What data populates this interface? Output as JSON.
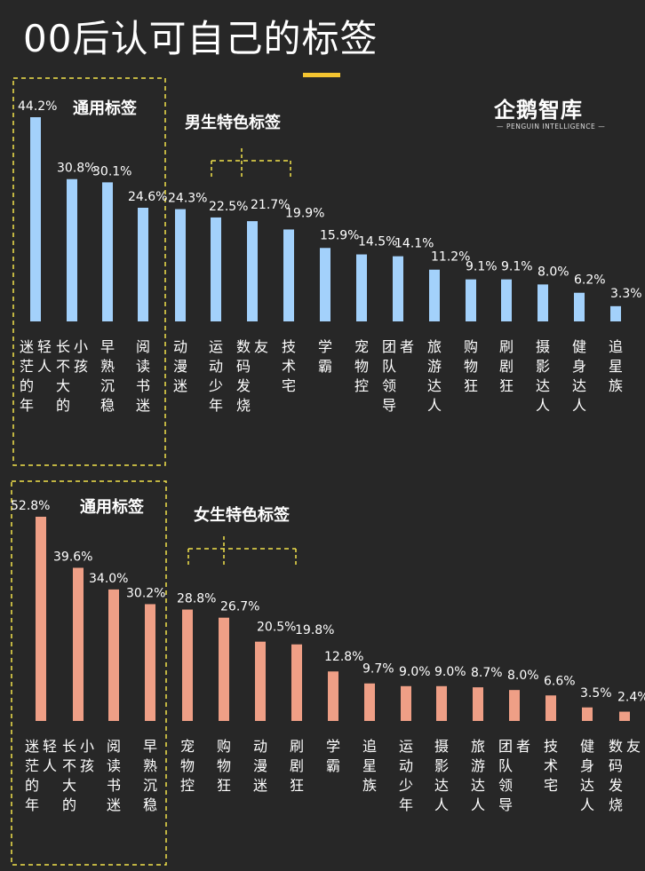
{
  "title": "00后认可自己的标签",
  "logo": {
    "name": "企鹅智库",
    "subtitle": "PENGUIN INTELLIGENCE"
  },
  "colors": {
    "male": "#a3d1fb",
    "female": "#ef9f86",
    "accent": "#f4e34c",
    "text": "#ffffff"
  },
  "chart_data": [
    {
      "type": "bar",
      "name": "male",
      "common_group_label": "通用标签",
      "special_group_label": "男生特色标签",
      "categories": [
        "迷茫的年轻人",
        "长不大的小孩",
        "早熟沉稳",
        "阅读书迷",
        "动漫迷",
        "运动少年",
        "数码发烧友",
        "技术宅",
        "学霸",
        "宠物控",
        "团队领导者",
        "旅游达人",
        "购物狂",
        "刷剧狂",
        "摄影达人",
        "健身达人",
        "追星族"
      ],
      "values": [
        44.2,
        30.8,
        30.1,
        24.6,
        24.3,
        22.5,
        21.7,
        19.9,
        15.9,
        14.5,
        14.1,
        11.2,
        9.1,
        9.1,
        8.0,
        6.2,
        3.3
      ],
      "value_labels": [
        "44.2%",
        "30.8%",
        "30.1%",
        "24.6%",
        "24.3%",
        "22.5%",
        "21.7%",
        "19.9%",
        "15.9%",
        "14.5%",
        "14.1%",
        "11.2%",
        "9.1%",
        "9.1%",
        "8.0%",
        "6.2%",
        "3.3%"
      ],
      "ylim": [
        0,
        50
      ]
    },
    {
      "type": "bar",
      "name": "female",
      "common_group_label": "通用标签",
      "special_group_label": "女生特色标签",
      "categories": [
        "迷茫的年轻人",
        "长不大的小孩",
        "阅读书迷",
        "早熟沉稳",
        "宠物控",
        "购物狂",
        "动漫迷",
        "刷剧狂",
        "学霸",
        "追星族",
        "运动少年",
        "摄影达人",
        "旅游达人",
        "团队领导者",
        "技术宅",
        "健身达人",
        "数码发烧友"
      ],
      "values": [
        52.8,
        39.6,
        34.0,
        30.2,
        28.8,
        26.7,
        20.5,
        19.8,
        12.8,
        9.7,
        9.0,
        9.0,
        8.7,
        8.0,
        6.6,
        3.5,
        2.4
      ],
      "value_labels": [
        "52.8%",
        "39.6%",
        "34.0%",
        "30.2%",
        "28.8%",
        "26.7%",
        "20.5%",
        "19.8%",
        "12.8%",
        "9.7%",
        "9.0%",
        "9.0%",
        "8.7%",
        "8.0%",
        "6.6%",
        "3.5%",
        "2.4%"
      ],
      "ylim": [
        0,
        60
      ]
    }
  ]
}
